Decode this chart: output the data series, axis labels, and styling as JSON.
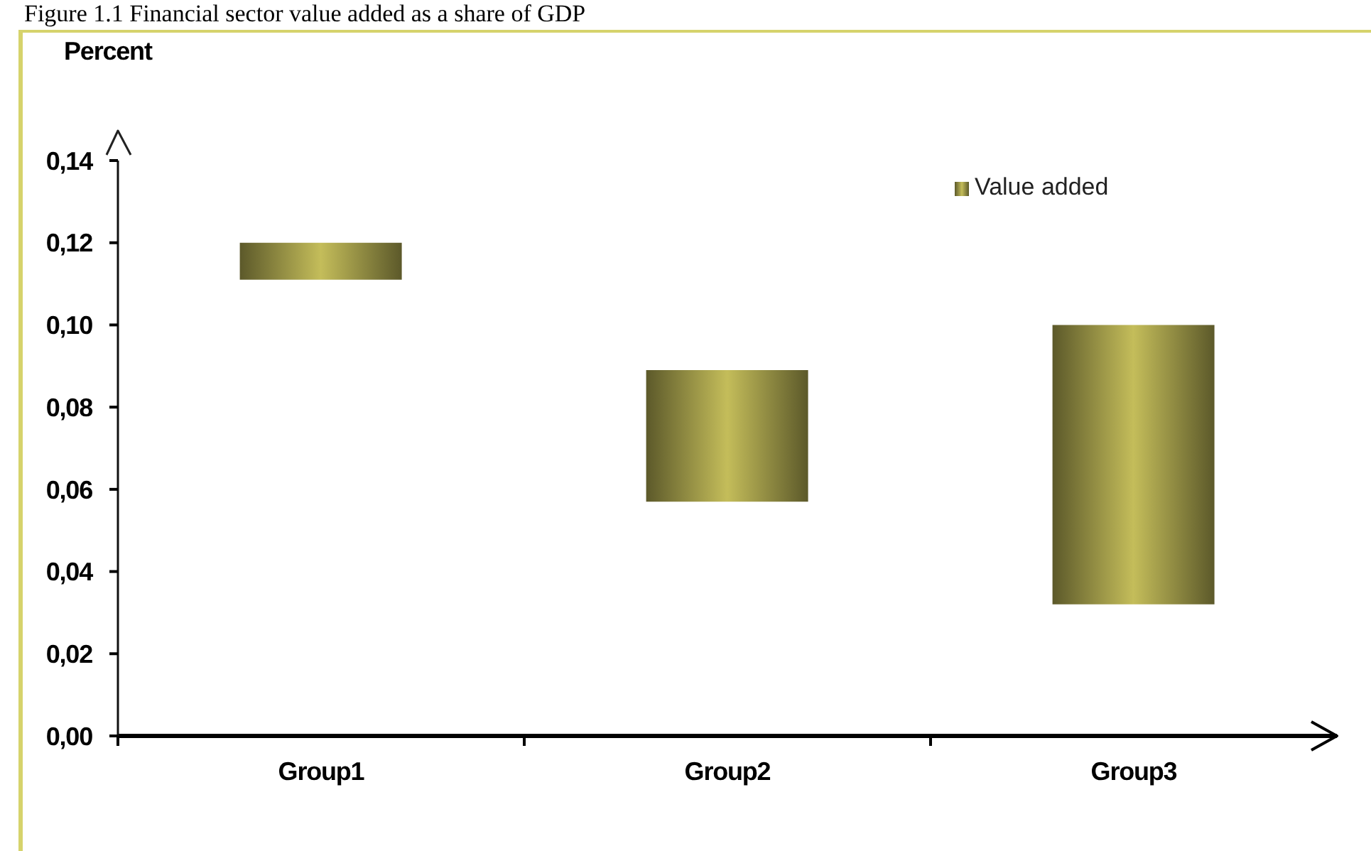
{
  "chart_data": {
    "type": "bar",
    "title": "Figure 1.1 Financial sector value added as a share of GDP",
    "ylabel": "Percent",
    "categories": [
      "Group1",
      "Group2",
      "Group3"
    ],
    "series": [
      {
        "name": "Value added",
        "color": "#c4bd5a",
        "values": [
          0.009,
          0.032,
          0.068
        ],
        "base": [
          0.111,
          0.057,
          0.032
        ]
      }
    ],
    "ylim": [
      0,
      0.14
    ],
    "yticks": [
      {
        "value": 0,
        "label": "0,00"
      },
      {
        "value": 0.02,
        "label": "0,02"
      },
      {
        "value": 0.04,
        "label": "0,04"
      },
      {
        "value": 0.06,
        "label": "0,06"
      },
      {
        "value": 0.08,
        "label": "0,08"
      },
      {
        "value": 0.1,
        "label": "0,10"
      },
      {
        "value": 0.12,
        "label": "0,12"
      },
      {
        "value": 0.14,
        "label": "0,14"
      }
    ],
    "legend": "top right"
  }
}
